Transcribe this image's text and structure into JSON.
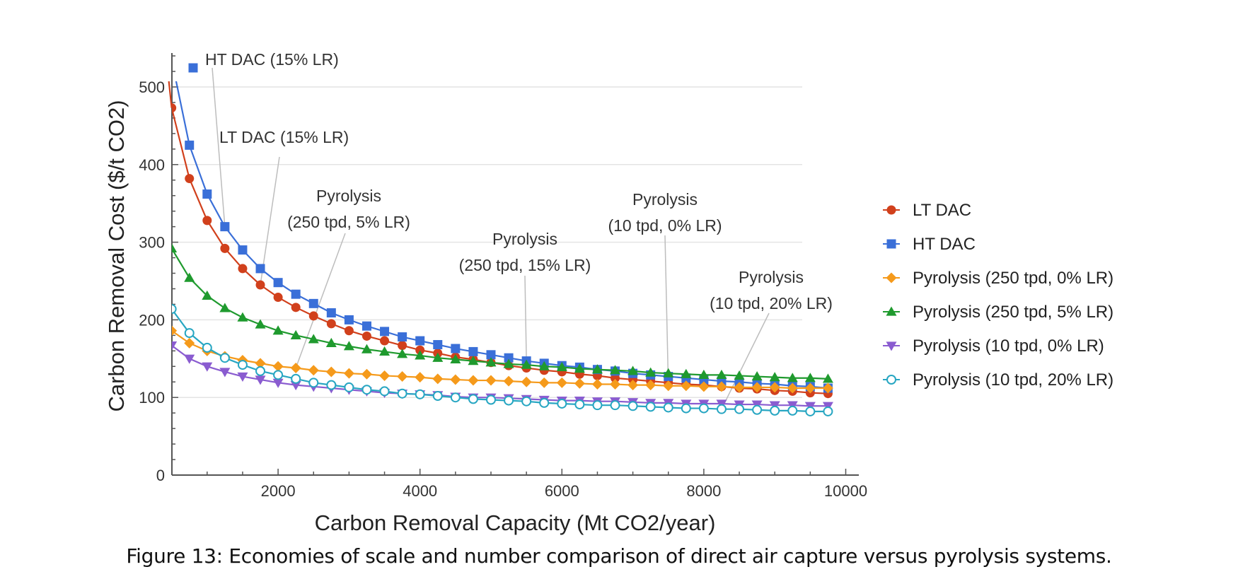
{
  "caption": "Figure 13: Economies of scale and number comparison of direct air capture versus pyrolysis systems.",
  "chart_data": {
    "type": "line",
    "title": "",
    "xlabel": "Carbon Removal Capacity (Mt CO2/year)",
    "ylabel": "Carbon Removal Cost ($/t CO2)",
    "xlim": [
      500,
      10200
    ],
    "ylim": [
      0,
      545
    ],
    "xticks": [
      2000,
      4000,
      6000,
      8000,
      10000
    ],
    "xtick_labels": [
      "2000",
      "4000",
      "6000",
      "8000",
      "10000"
    ],
    "yticks": [
      0,
      100,
      200,
      300,
      400,
      500
    ],
    "ytick_labels": [
      "0",
      "100",
      "200",
      "300",
      "400",
      "500"
    ],
    "grid": "horizontal",
    "legend_position": "right",
    "x": [
      500,
      750,
      1000,
      1250,
      1500,
      1750,
      2000,
      2250,
      2500,
      2750,
      3000,
      3250,
      3500,
      3750,
      4000,
      4250,
      4500,
      4750,
      5000,
      5250,
      5500,
      5750,
      6000,
      6250,
      6500,
      6750,
      7000,
      7250,
      7500,
      7750,
      8000,
      8250,
      8500,
      8750,
      9000,
      9250,
      9500,
      9750
    ],
    "series": [
      {
        "name": "LT DAC",
        "color": "#d1401c",
        "marker": "circle",
        "values": [
          473,
          382,
          328,
          292,
          266,
          245,
          229,
          216,
          205,
          195,
          186,
          179,
          173,
          167,
          161,
          157,
          152,
          149,
          145,
          141,
          138,
          135,
          133,
          130,
          128,
          125,
          123,
          121,
          119,
          117,
          116,
          114,
          112,
          111,
          109,
          108,
          106,
          105
        ]
      },
      {
        "name": "HT DAC",
        "color": "#3a6fd8",
        "marker": "square",
        "values": [
          535,
          425,
          362,
          320,
          290,
          266,
          248,
          233,
          221,
          209,
          200,
          192,
          185,
          178,
          173,
          168,
          163,
          159,
          155,
          151,
          147,
          144,
          141,
          139,
          136,
          134,
          131,
          129,
          127,
          125,
          123,
          121,
          120,
          118,
          117,
          115,
          114,
          112
        ]
      },
      {
        "name": "Pyrolysis (250 tpd, 0% LR)",
        "color": "#f59a1b",
        "marker": "diamond",
        "values": [
          186,
          170,
          160,
          153,
          148,
          144,
          140,
          138,
          135,
          133,
          131,
          130,
          128,
          127,
          126,
          124,
          123,
          122,
          122,
          121,
          120,
          119,
          119,
          118,
          117,
          117,
          116,
          116,
          115,
          115,
          114,
          114,
          113,
          113,
          113,
          112,
          112,
          112
        ]
      },
      {
        "name": "Pyrolysis (250 tpd, 5% LR)",
        "color": "#1f9a2e",
        "marker": "triangle-up",
        "values": [
          292,
          254,
          231,
          215,
          203,
          194,
          186,
          180,
          175,
          170,
          166,
          162,
          159,
          156,
          154,
          151,
          149,
          147,
          145,
          143,
          142,
          140,
          139,
          137,
          136,
          135,
          134,
          132,
          131,
          130,
          129,
          129,
          128,
          127,
          126,
          125,
          125,
          124
        ]
      },
      {
        "name": "Pyrolysis (10 tpd, 0% LR)",
        "color": "#8a5cd0",
        "marker": "triangle-down",
        "values": [
          167,
          150,
          140,
          133,
          127,
          123,
          119,
          116,
          114,
          112,
          110,
          108,
          106,
          105,
          104,
          103,
          101,
          100,
          100,
          99,
          98,
          97,
          96,
          96,
          95,
          95,
          94,
          93,
          93,
          92,
          92,
          92,
          91,
          91,
          90,
          90,
          89,
          89
        ]
      },
      {
        "name": "Pyrolysis (10 tpd, 20% LR)",
        "color": "#27a6c2",
        "marker": "circle-open",
        "values": [
          214,
          183,
          164,
          151,
          142,
          134,
          129,
          124,
          119,
          116,
          113,
          110,
          108,
          105,
          104,
          102,
          100,
          98,
          97,
          96,
          95,
          93,
          92,
          91,
          90,
          90,
          89,
          88,
          87,
          86,
          86,
          85,
          85,
          84,
          83,
          83,
          82,
          82
        ]
      }
    ],
    "annotations": [
      {
        "lines": [
          "HT DAC (15% LR)"
        ],
        "series": "HT DAC",
        "point_x": 1250,
        "marker_series": "HT DAC"
      },
      {
        "lines": [
          "LT DAC (15% LR)"
        ],
        "series": "LT DAC",
        "point_x": 1750
      },
      {
        "lines": [
          "Pyrolysis",
          "(250 tpd, 5% LR)"
        ],
        "series": "Pyrolysis (250 tpd, 0% LR)",
        "point_x": 2250
      },
      {
        "lines": [
          "Pyrolysis",
          "(250 tpd, 15% LR)"
        ],
        "series": "HT DAC",
        "point_x": 5500
      },
      {
        "lines": [
          "Pyrolysis",
          "(10 tpd, 0% LR)"
        ],
        "series": "Pyrolysis (250 tpd, 0% LR)",
        "point_x": 7500
      },
      {
        "lines": [
          "Pyrolysis",
          "(10 tpd, 20% LR)"
        ],
        "series": "Pyrolysis (10 tpd, 20% LR)",
        "point_x": 8250
      }
    ]
  }
}
